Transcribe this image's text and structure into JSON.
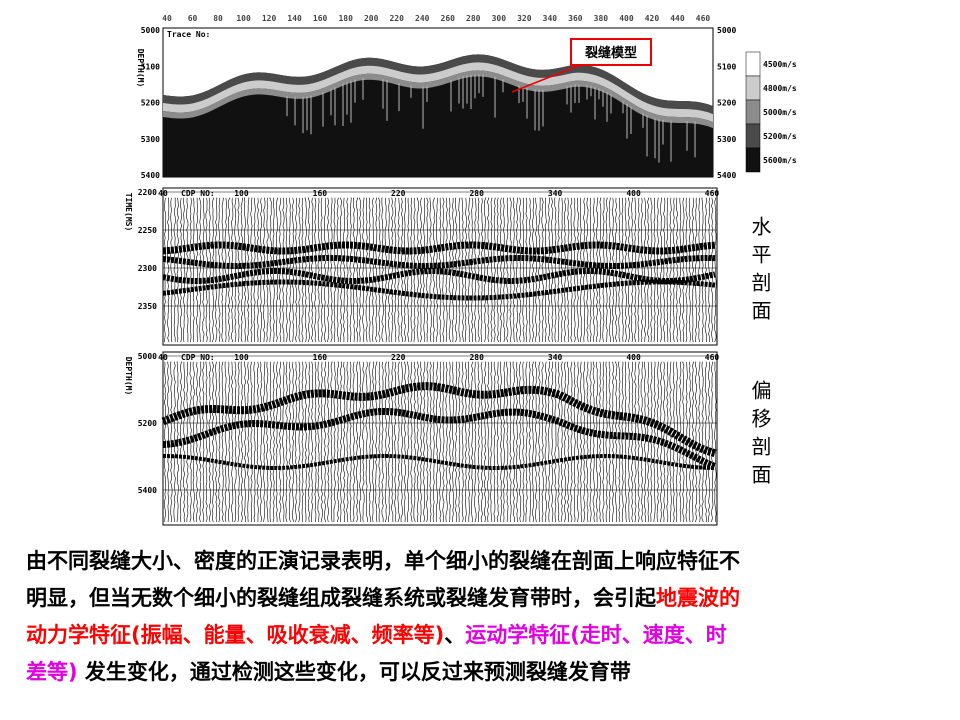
{
  "panel1": {
    "trace_label": "Trace No:",
    "axis_title": "DEPTH(M)",
    "top_ticks": [
      "40",
      "60",
      "80",
      "100",
      "120",
      "140",
      "160",
      "180",
      "200",
      "220",
      "240",
      "260",
      "280",
      "300",
      "320",
      "340",
      "360",
      "380",
      "400",
      "420",
      "440",
      "460"
    ],
    "left_ticks": [
      "5000",
      "5100",
      "5200",
      "5300",
      "5400"
    ],
    "right_ticks": [
      "5000",
      "5100",
      "5200",
      "5300",
      "5400"
    ],
    "callout": "裂缝模型",
    "legend": [
      {
        "label": "4500m/s",
        "color": "#ffffff"
      },
      {
        "label": "4800m/s",
        "color": "#cccccc"
      },
      {
        "label": "5000m/s",
        "color": "#8c8c8c"
      },
      {
        "label": "5200m/s",
        "color": "#4a4a4a"
      },
      {
        "label": "5600m/s",
        "color": "#111111"
      }
    ]
  },
  "panel2": {
    "trace_label": "CDP NO:",
    "axis_title": "TIME(MS)",
    "top_ticks": [
      "40",
      "100",
      "160",
      "220",
      "280",
      "340",
      "400",
      "460"
    ],
    "left_ticks": [
      "2200",
      "2250",
      "2300",
      "2350"
    ],
    "side_label": "水平剖面"
  },
  "panel3": {
    "trace_label": "CDP NO:",
    "axis_title": "DEPTH(M)",
    "top_ticks": [
      "40",
      "100",
      "160",
      "220",
      "280",
      "340",
      "400",
      "460"
    ],
    "left_ticks": [
      "5000",
      "5200",
      "5400"
    ],
    "side_label": "偏移剖面"
  },
  "caption": [
    [
      {
        "text": "由不同裂缝大小、密度的正演记录表明，单个细小的裂缝在剖面上响应特征不",
        "color": "#000000"
      }
    ],
    [
      {
        "text": "明显，但当无数个细小的裂缝组成裂缝系统或裂缝发育带时，会引起",
        "color": "#000000"
      },
      {
        "text": "地震波的",
        "color": "#ff0000"
      }
    ],
    [
      {
        "text": "动力学特征(振幅、能量、吸收衰减、频率等)",
        "color": "#ff0000"
      },
      {
        "text": "、",
        "color": "#000000"
      },
      {
        "text": "运动学特征(走时、速度、时",
        "color": "#e000e0"
      }
    ],
    [
      {
        "text": "差等)",
        "color": "#e000e0"
      },
      {
        "text": " 发生变化，通过检测这些变化，可以反过来预测裂缝发育带",
        "color": "#000000"
      }
    ]
  ]
}
